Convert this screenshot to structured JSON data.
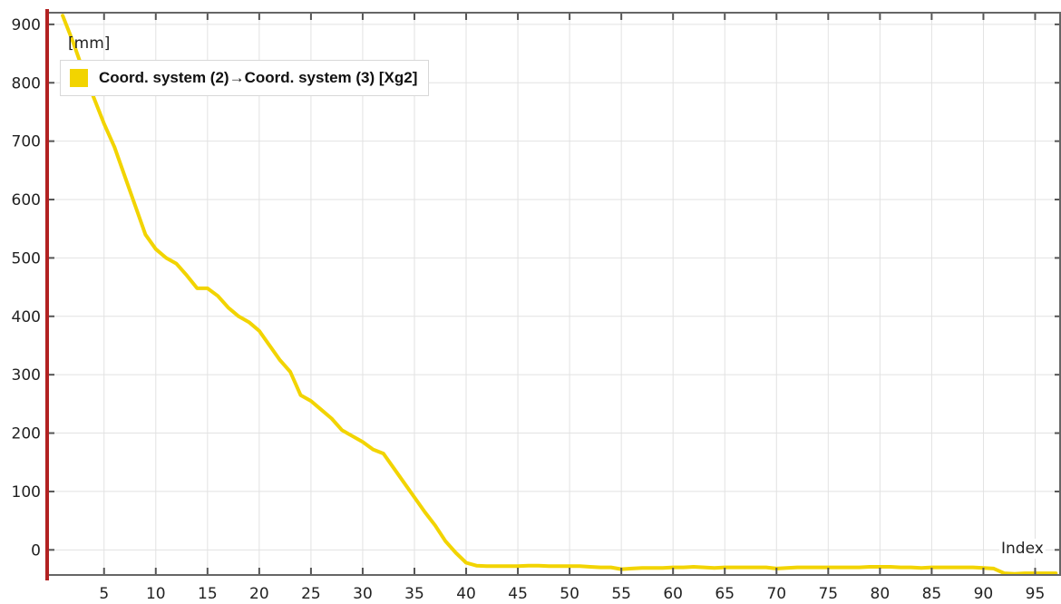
{
  "chart_data": {
    "type": "line",
    "ylabel": "[mm]",
    "xlabel": "Index",
    "xlim": [
      -0.5,
      97.5
    ],
    "ylim": [
      -43,
      920
    ],
    "x_ticks": [
      5,
      10,
      15,
      20,
      25,
      30,
      35,
      40,
      45,
      50,
      55,
      60,
      65,
      70,
      75,
      80,
      85,
      90,
      95
    ],
    "y_ticks": [
      0,
      100,
      200,
      300,
      400,
      500,
      600,
      700,
      800,
      900
    ],
    "grid": true,
    "legend_position": "top-left",
    "series": [
      {
        "name": "Coord. system (2)→Coord. system (3)  [Xg2]",
        "color": "#f2d400",
        "x": [
          1,
          2,
          3,
          4,
          5,
          6,
          7,
          8,
          9,
          10,
          11,
          12,
          13,
          14,
          15,
          16,
          17,
          18,
          19,
          20,
          21,
          22,
          23,
          24,
          25,
          26,
          27,
          28,
          29,
          30,
          31,
          32,
          33,
          34,
          35,
          36,
          37,
          38,
          39,
          40,
          41,
          42,
          43,
          44,
          45,
          46,
          47,
          48,
          49,
          50,
          51,
          52,
          53,
          54,
          55,
          56,
          57,
          58,
          59,
          60,
          61,
          62,
          63,
          64,
          65,
          66,
          67,
          68,
          69,
          70,
          71,
          72,
          73,
          74,
          75,
          76,
          77,
          78,
          79,
          80,
          81,
          82,
          83,
          84,
          85,
          86,
          87,
          88,
          89,
          90,
          91,
          92,
          93,
          94,
          95,
          96,
          97
        ],
        "y": [
          915,
          870,
          820,
          775,
          730,
          690,
          640,
          590,
          540,
          515,
          500,
          490,
          470,
          448,
          448,
          435,
          415,
          400,
          390,
          375,
          350,
          325,
          305,
          265,
          255,
          240,
          225,
          205,
          195,
          185,
          172,
          165,
          140,
          115,
          90,
          65,
          42,
          15,
          -5,
          -22,
          -27,
          -28,
          -28,
          -28,
          -28,
          -27,
          -27,
          -28,
          -28,
          -28,
          -28,
          -29,
          -30,
          -30,
          -33,
          -32,
          -31,
          -31,
          -31,
          -30,
          -30,
          -29,
          -30,
          -31,
          -30,
          -30,
          -30,
          -30,
          -30,
          -32,
          -31,
          -30,
          -30,
          -30,
          -30,
          -30,
          -30,
          -30,
          -29,
          -29,
          -29,
          -30,
          -30,
          -31,
          -30,
          -30,
          -30,
          -30,
          -30,
          -31,
          -32,
          -40,
          -41,
          -40,
          -40,
          -40,
          -40
        ]
      }
    ]
  }
}
